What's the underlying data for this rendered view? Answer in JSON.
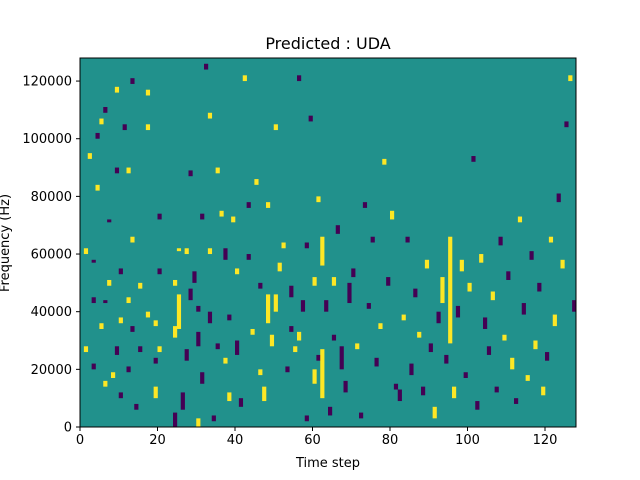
{
  "chart_data": {
    "type": "heatmap",
    "title": "Predicted : UDA",
    "xlabel": "Time step",
    "ylabel": "Frequency (Hz)",
    "xlim": [
      0,
      128
    ],
    "ylim": [
      0,
      128000
    ],
    "xticks": [
      0,
      20,
      40,
      60,
      80,
      100,
      120
    ],
    "yticks": [
      0,
      20000,
      40000,
      60000,
      80000,
      100000,
      120000
    ],
    "ytick_labels": [
      "0",
      "20000",
      "40000",
      "60000",
      "80000",
      "100000",
      "120000"
    ],
    "rows": 128,
    "cols": 128,
    "cell_height_hz": 1000,
    "background_class": 0,
    "classes": [
      {
        "value": -1,
        "color": "#440154"
      },
      {
        "value": 0,
        "color": "#21918c"
      },
      {
        "value": 1,
        "color": "#fde725"
      }
    ],
    "cells_note": "Non-background cells as [time_step, freq_bin_start, freq_bin_end, class]; freq bins are 1000 Hz each",
    "cells": [
      [
        1,
        26,
        28,
        1
      ],
      [
        1,
        60,
        62,
        1
      ],
      [
        2,
        93,
        95,
        1
      ],
      [
        3,
        57,
        58,
        -1
      ],
      [
        3,
        20,
        22,
        -1
      ],
      [
        3,
        43,
        45,
        -1
      ],
      [
        4,
        100,
        102,
        -1
      ],
      [
        4,
        82,
        84,
        1
      ],
      [
        5,
        34,
        36,
        1
      ],
      [
        5,
        105,
        107,
        1
      ],
      [
        6,
        109,
        111,
        -1
      ],
      [
        6,
        14,
        16,
        1
      ],
      [
        6,
        43,
        44,
        -1
      ],
      [
        7,
        49,
        51,
        1
      ],
      [
        7,
        71,
        72,
        -1
      ],
      [
        8,
        17,
        19,
        1
      ],
      [
        9,
        116,
        118,
        1
      ],
      [
        9,
        88,
        90,
        -1
      ],
      [
        9,
        25,
        28,
        -1
      ],
      [
        10,
        53,
        55,
        -1
      ],
      [
        10,
        36,
        38,
        1
      ],
      [
        10,
        10,
        12,
        -1
      ],
      [
        11,
        103,
        105,
        -1
      ],
      [
        12,
        19,
        21,
        -1
      ],
      [
        12,
        88,
        90,
        1
      ],
      [
        12,
        43,
        45,
        1
      ],
      [
        13,
        64,
        66,
        1
      ],
      [
        13,
        33,
        35,
        -1
      ],
      [
        13,
        119,
        121,
        -1
      ],
      [
        14,
        6,
        8,
        -1
      ],
      [
        15,
        48,
        50,
        1
      ],
      [
        15,
        26,
        28,
        -1
      ],
      [
        17,
        38,
        40,
        1
      ],
      [
        17,
        115,
        117,
        1
      ],
      [
        17,
        103,
        105,
        1
      ],
      [
        19,
        22,
        24,
        -1
      ],
      [
        19,
        35,
        37,
        1
      ],
      [
        19,
        10,
        14,
        1
      ],
      [
        20,
        53,
        55,
        -1
      ],
      [
        20,
        72,
        74,
        -1
      ],
      [
        20,
        26,
        28,
        1
      ],
      [
        24,
        0,
        5,
        -1
      ],
      [
        24,
        31,
        35,
        1
      ],
      [
        24,
        49,
        51,
        1
      ],
      [
        25,
        34,
        46,
        1
      ],
      [
        25,
        61,
        62,
        1
      ],
      [
        26,
        6,
        12,
        -1
      ],
      [
        27,
        60,
        62,
        1
      ],
      [
        27,
        23,
        27,
        -1
      ],
      [
        28,
        44,
        48,
        -1
      ],
      [
        28,
        87,
        89,
        -1
      ],
      [
        29,
        50,
        54,
        -1
      ],
      [
        30,
        0,
        3,
        1
      ],
      [
        30,
        28,
        33,
        -1
      ],
      [
        30,
        40,
        42,
        -1
      ],
      [
        31,
        15,
        19,
        -1
      ],
      [
        31,
        72,
        74,
        -1
      ],
      [
        32,
        124,
        126,
        -1
      ],
      [
        33,
        107,
        109,
        1
      ],
      [
        33,
        60,
        62,
        1
      ],
      [
        33,
        36,
        40,
        -1
      ],
      [
        34,
        2,
        4,
        -1
      ],
      [
        35,
        27,
        29,
        -1
      ],
      [
        35,
        88,
        90,
        1
      ],
      [
        36,
        73,
        75,
        1
      ],
      [
        37,
        22,
        24,
        1
      ],
      [
        37,
        58,
        62,
        -1
      ],
      [
        38,
        37,
        39,
        -1
      ],
      [
        38,
        9,
        12,
        1
      ],
      [
        39,
        71,
        73,
        1
      ],
      [
        40,
        25,
        30,
        -1
      ],
      [
        40,
        53,
        55,
        1
      ],
      [
        41,
        7,
        10,
        -1
      ],
      [
        42,
        120,
        122,
        1
      ],
      [
        43,
        58,
        60,
        -1
      ],
      [
        43,
        76,
        78,
        -1
      ],
      [
        44,
        32,
        34,
        1
      ],
      [
        45,
        84,
        86,
        1
      ],
      [
        46,
        18,
        20,
        1
      ],
      [
        46,
        48,
        50,
        -1
      ],
      [
        47,
        9,
        14,
        1
      ],
      [
        48,
        36,
        46,
        1
      ],
      [
        48,
        76,
        78,
        1
      ],
      [
        49,
        28,
        32,
        1
      ],
      [
        50,
        40,
        46,
        1
      ],
      [
        50,
        103,
        105,
        1
      ],
      [
        51,
        54,
        57,
        1
      ],
      [
        52,
        62,
        64,
        1
      ],
      [
        53,
        19,
        21,
        -1
      ],
      [
        54,
        33,
        35,
        -1
      ],
      [
        54,
        45,
        49,
        -1
      ],
      [
        55,
        26,
        28,
        1
      ],
      [
        56,
        120,
        122,
        -1
      ],
      [
        56,
        30,
        33,
        1
      ],
      [
        57,
        40,
        44,
        -1
      ],
      [
        58,
        62,
        64,
        -1
      ],
      [
        58,
        2,
        4,
        -1
      ],
      [
        59,
        106,
        108,
        -1
      ],
      [
        60,
        15,
        20,
        1
      ],
      [
        60,
        49,
        52,
        1
      ],
      [
        61,
        23,
        25,
        -1
      ],
      [
        61,
        78,
        80,
        1
      ],
      [
        62,
        10,
        27,
        1
      ],
      [
        62,
        56,
        66,
        1
      ],
      [
        63,
        40,
        44,
        -1
      ],
      [
        64,
        4,
        7,
        -1
      ],
      [
        65,
        49,
        52,
        1
      ],
      [
        65,
        30,
        32,
        -1
      ],
      [
        66,
        67,
        70,
        -1
      ],
      [
        67,
        20,
        28,
        -1
      ],
      [
        68,
        12,
        16,
        -1
      ],
      [
        69,
        43,
        50,
        -1
      ],
      [
        70,
        52,
        55,
        -1
      ],
      [
        71,
        27,
        29,
        1
      ],
      [
        72,
        3,
        5,
        -1
      ],
      [
        73,
        76,
        78,
        -1
      ],
      [
        74,
        41,
        43,
        -1
      ],
      [
        75,
        64,
        66,
        -1
      ],
      [
        76,
        21,
        24,
        -1
      ],
      [
        77,
        34,
        36,
        1
      ],
      [
        78,
        91,
        93,
        1
      ],
      [
        79,
        49,
        52,
        -1
      ],
      [
        80,
        72,
        75,
        1
      ],
      [
        81,
        13,
        15,
        -1
      ],
      [
        82,
        9,
        13,
        -1
      ],
      [
        83,
        37,
        39,
        1
      ],
      [
        84,
        64,
        66,
        -1
      ],
      [
        85,
        18,
        22,
        -1
      ],
      [
        86,
        45,
        48,
        -1
      ],
      [
        87,
        31,
        33,
        1
      ],
      [
        88,
        11,
        14,
        -1
      ],
      [
        89,
        55,
        58,
        1
      ],
      [
        90,
        26,
        29,
        -1
      ],
      [
        91,
        3,
        7,
        1
      ],
      [
        92,
        36,
        40,
        -1
      ],
      [
        93,
        43,
        52,
        1
      ],
      [
        94,
        22,
        25,
        -1
      ],
      [
        95,
        29,
        66,
        1
      ],
      [
        96,
        10,
        14,
        1
      ],
      [
        97,
        38,
        42,
        -1
      ],
      [
        98,
        54,
        58,
        1
      ],
      [
        99,
        17,
        19,
        -1
      ],
      [
        100,
        47,
        50,
        1
      ],
      [
        101,
        92,
        94,
        -1
      ],
      [
        102,
        6,
        9,
        -1
      ],
      [
        103,
        57,
        60,
        1
      ],
      [
        104,
        34,
        38,
        -1
      ],
      [
        105,
        25,
        28,
        -1
      ],
      [
        106,
        44,
        47,
        1
      ],
      [
        107,
        12,
        14,
        -1
      ],
      [
        108,
        63,
        66,
        -1
      ],
      [
        109,
        30,
        32,
        1
      ],
      [
        110,
        51,
        54,
        -1
      ],
      [
        111,
        20,
        24,
        1
      ],
      [
        112,
        8,
        10,
        -1
      ],
      [
        113,
        71,
        73,
        1
      ],
      [
        114,
        39,
        43,
        -1
      ],
      [
        115,
        16,
        18,
        1
      ],
      [
        116,
        58,
        61,
        -1
      ],
      [
        117,
        27,
        30,
        1
      ],
      [
        118,
        47,
        50,
        -1
      ],
      [
        119,
        11,
        14,
        1
      ],
      [
        120,
        23,
        26,
        -1
      ],
      [
        121,
        64,
        66,
        1
      ],
      [
        122,
        35,
        39,
        1
      ],
      [
        123,
        78,
        81,
        -1
      ],
      [
        124,
        55,
        58,
        1
      ],
      [
        125,
        104,
        106,
        -1
      ],
      [
        126,
        120,
        122,
        1
      ],
      [
        127,
        40,
        44,
        -1
      ]
    ]
  }
}
